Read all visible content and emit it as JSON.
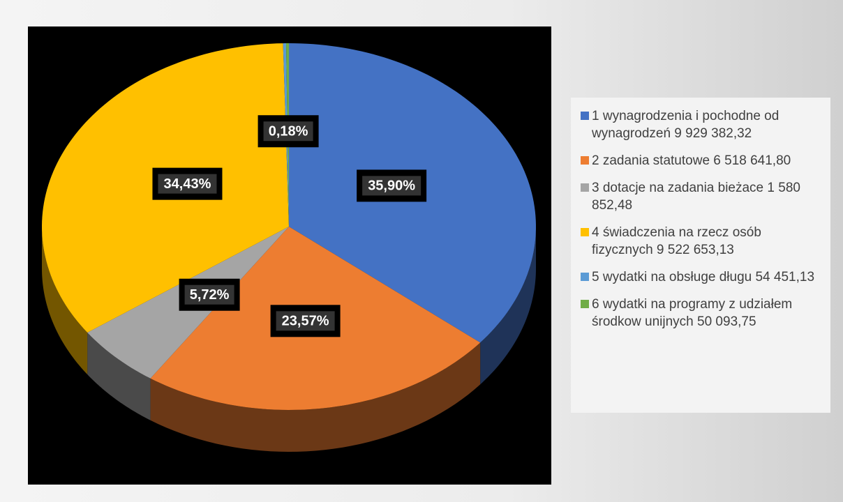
{
  "chart_data": {
    "type": "pie",
    "categories": [
      "1 wynagrodzenia i pochodne od wynagrodzeń  9 929 382,32",
      "2 zadania statutowe 6 518 641,80",
      "3 dotacje na zadania bieżace  1 580 852,48",
      "4 świadczenia  na rzecz osób fizycznych  9 522 653,13",
      "5 wydatki  na obsługe  długu  54 451,13",
      "6 wydatki na programy z udziałem środkow unijnych  50 093,75"
    ],
    "values": [
      35.9,
      23.57,
      5.72,
      34.43,
      0.2,
      0.18
    ],
    "value_labels": [
      "35,90%",
      "23,57%",
      "5,72%",
      "34,43%",
      null,
      "0,18%"
    ],
    "colors": [
      "#4472c4",
      "#ed7d31",
      "#a5a5a5",
      "#ffc000",
      "#5b9bd5",
      "#70ad47"
    ],
    "legend": "right"
  }
}
